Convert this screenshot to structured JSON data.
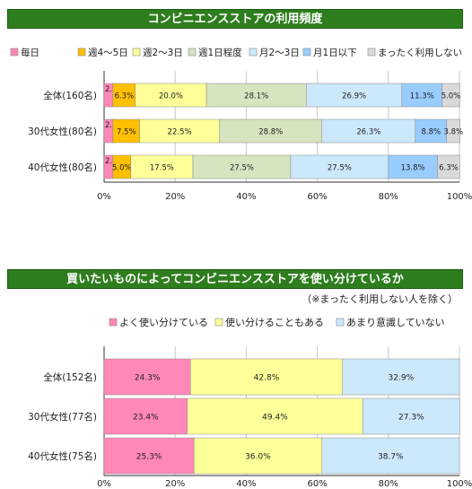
{
  "chart_data": [
    {
      "type": "bar",
      "stacked": true,
      "orientation": "horizontal",
      "title": "コンビニエンスストアの利用頻度",
      "categories": [
        "全体(160名)",
        "30代女性(80名)",
        "40代女性(80名)"
      ],
      "series": [
        {
          "name": "毎日",
          "color": "#ff88b8",
          "values": [
            2.5,
            2.5,
            2.5
          ]
        },
        {
          "name": "週4～5日",
          "color": "#ffc000",
          "values": [
            6.3,
            7.5,
            5.0
          ]
        },
        {
          "name": "週2～3日",
          "color": "#ffff99",
          "values": [
            20.0,
            22.5,
            17.5
          ]
        },
        {
          "name": "週1日程度",
          "color": "#d6e4bf",
          "values": [
            28.1,
            28.8,
            27.5
          ]
        },
        {
          "name": "月2～3日",
          "color": "#cce8fb",
          "values": [
            26.9,
            26.3,
            27.5
          ]
        },
        {
          "name": "月1日以下",
          "color": "#99ccff",
          "values": [
            11.3,
            8.8,
            13.8
          ]
        },
        {
          "name": "まったく利用しない",
          "color": "#d9d9d9",
          "values": [
            5.0,
            3.8,
            6.3
          ]
        }
      ],
      "xlim": [
        0,
        100
      ],
      "xticks": [
        "0%",
        "20%",
        "40%",
        "60%",
        "80%",
        "100%"
      ],
      "legend": "top"
    },
    {
      "type": "bar",
      "stacked": true,
      "orientation": "horizontal",
      "title": "買いたいものによってコンビニエンスストアを使い分けているか",
      "note": "（※まったく利用しない人を除く）",
      "categories": [
        "全体(152名)",
        "30代女性(77名)",
        "40代女性(75名)"
      ],
      "series": [
        {
          "name": "よく使い分けている",
          "color": "#ff88b8",
          "values": [
            24.3,
            23.4,
            25.3
          ]
        },
        {
          "name": "使い分けることもある",
          "color": "#ffff99",
          "values": [
            42.8,
            49.4,
            36.0
          ]
        },
        {
          "name": "あまり意識していない",
          "color": "#cce8fb",
          "values": [
            32.9,
            27.3,
            38.7
          ]
        }
      ],
      "xlim": [
        0,
        100
      ],
      "xticks": [
        "0%",
        "20%",
        "40%",
        "60%",
        "80%",
        "100%"
      ],
      "legend": "top"
    }
  ]
}
